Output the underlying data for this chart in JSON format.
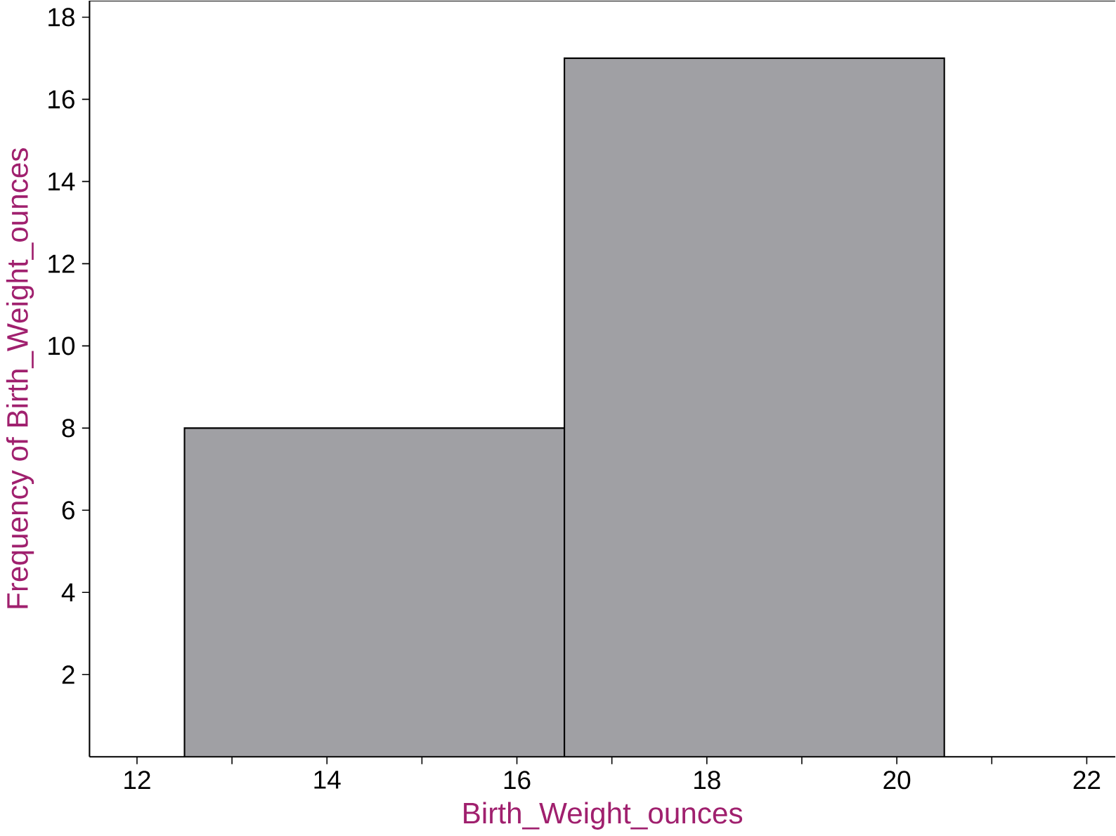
{
  "chart_data": {
    "type": "histogram",
    "xlabel": "Birth_Weight_ounces",
    "ylabel": "Frequency of Birth_Weight_ounces",
    "bins": [
      12.5,
      16.5,
      20.5
    ],
    "values": [
      8,
      17
    ],
    "color": "#a0a0a4",
    "xlim": [
      11.5,
      22.3
    ],
    "ylim": [
      0,
      18.4
    ],
    "xticks": [
      12,
      {
        "value": 13,
        "label": null
      },
      14,
      {
        "value": 15,
        "label": null
      },
      16,
      {
        "value": 17,
        "label": null
      },
      18,
      {
        "value": 19,
        "label": null
      },
      20,
      {
        "value": 21,
        "label": null
      },
      22
    ],
    "yticks": [
      2,
      4,
      6,
      8,
      10,
      12,
      14,
      16,
      18
    ],
    "grid": false
  }
}
